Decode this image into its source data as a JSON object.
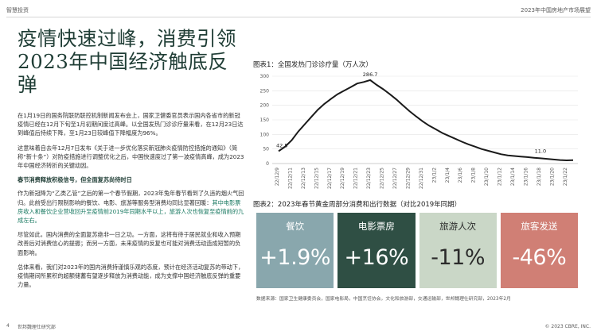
{
  "header": {
    "left": "智慧投资",
    "right": "2023年中国房地产市场展望"
  },
  "headline": "疫情快速过峰，消费引领2023年中国经济触底反弹",
  "body": {
    "p1": "在1月19日的国务院联防联控机制新闻发布会上，国家卫健委官员表示国内各省市的新冠疫情已经在12月下旬至1月初期间度过高峰。以全国发热门诊诊疗量来看，在12月23日达到峰值后持续下降，至1月23日较峰值下降幅度为96%。",
    "p2": "这意味着自去年12月7日发布《关于进一步优化落实新冠肺炎疫情防控措施的通知》（简称“新十条”）对防疫措施进行调整优化之后，中国快速度过了第一波疫情高峰，成为2023年中国经济转折的关键动因。",
    "subhead": "春节消费释放积极信号，但全面复苏尚待时日",
    "p3a": "作为新冠降为“乙类乙管”之后的第一个春节假期，2023年兔年春节看到了久违的烟火气回归。此前受出行限制影响的餐饮、电影、旅游等服务型消费均同比显著回暖：",
    "p3b": "其中电影票房收入和餐饮企业营收回升至疫情前2019年同期水平以上，旅游人次也恢复至疫情前的九成左右。",
    "p4": "尽管如此，国内消费的全面复苏绝非一日之功。一方面，这将有待于居民就业和收入预期改善后对消费信心的提振；而另一方面，未来疫情的反复也可能对消费活动造成短暂的负面影响。",
    "p5": "总体来看，我们对2023年的国内消费持谨慎乐观的态度，预计在经济活动复苏的带动下，疫情期间所累积的超额储蓄有望逐步释放为消费动能，成为支撑中国经济触底反弹的重要力量。"
  },
  "figure1": {
    "title": "图表1：全国发热门诊诊疗量（万人次）"
  },
  "figure2": {
    "title": "图表2：2023年春节黄金周部分消费和出行数据（对比2019年同期）"
  },
  "cards": [
    {
      "label": "餐饮",
      "value": "+1.9%"
    },
    {
      "label": "电影票房",
      "value": "+16%"
    },
    {
      "label": "旅游人次",
      "value": "-11%"
    },
    {
      "label": "旅客发送",
      "value": "-46%"
    }
  ],
  "source": "数据来源：国家卫生健康委员会，国家电影局，中国烹饪协会，文化和旅游部，交通运输部，世邦魏理仕研究部，2023年2月",
  "footer": {
    "page": "4",
    "org": "世邦魏理仕研究部",
    "copyright": "© 2023 CBRE, INC."
  },
  "chart_data": {
    "type": "line",
    "title": "全国发热门诊诊疗量（万人次）",
    "x": [
      "22/12/9",
      "22/12/10",
      "22/12/11",
      "22/12/12",
      "22/12/13",
      "22/12/14",
      "22/12/15",
      "22/12/16",
      "22/12/17",
      "22/12/18",
      "22/12/19",
      "22/12/20",
      "22/12/21",
      "22/12/22",
      "22/12/23",
      "22/12/24",
      "22/12/25",
      "22/12/26",
      "22/12/27",
      "22/12/28",
      "22/12/29",
      "22/12/30",
      "22/12/31",
      "23/1/1",
      "23/1/2",
      "23/1/3",
      "23/1/4",
      "23/1/5",
      "23/1/6",
      "23/1/7",
      "23/1/8",
      "23/1/9",
      "23/1/10",
      "23/1/11",
      "23/1/12",
      "23/1/13",
      "23/1/14",
      "23/1/15",
      "23/1/16",
      "23/1/17",
      "23/1/18",
      "23/1/19",
      "23/1/20",
      "23/1/21",
      "23/1/22",
      "23/1/23"
    ],
    "tick_labels": [
      "22/12/9",
      "22/12/11",
      "22/12/13",
      "22/12/15",
      "22/12/17",
      "22/12/19",
      "22/12/21",
      "22/12/23",
      "22/12/25",
      "22/12/27",
      "22/12/29",
      "22/12/31",
      "23/1/2",
      "23/1/4",
      "23/1/6",
      "23/1/8",
      "23/1/10",
      "23/1/12",
      "23/1/14",
      "23/1/16",
      "23/1/18",
      "23/1/20",
      "23/1/22"
    ],
    "values": [
      42.5,
      58,
      80,
      110,
      135,
      160,
      185,
      205,
      222,
      238,
      250,
      262,
      275,
      280,
      286.7,
      270,
      255,
      238,
      220,
      200,
      180,
      162,
      145,
      130,
      118,
      105,
      95,
      85,
      75,
      66,
      58,
      50,
      44,
      38,
      32,
      28,
      26,
      24,
      22,
      20,
      18,
      16,
      14,
      12,
      11,
      11.5
    ],
    "annotations": [
      "42.5",
      "286.7",
      "11.0"
    ],
    "yticks": [
      "0",
      "50",
      "100",
      "150",
      "200",
      "250",
      "300"
    ],
    "ylim": [
      0,
      300
    ],
    "grid": true,
    "color": "#1a1a1a"
  }
}
